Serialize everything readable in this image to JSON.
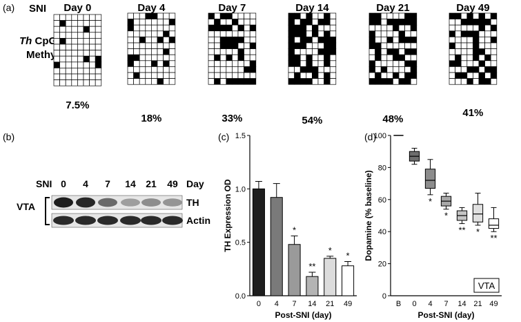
{
  "panel_a": {
    "label": "(a)",
    "group_label": "SNI",
    "row_label_italic": "Th",
    "row_label_rest": " CpG",
    "row_label_line2": "Methy",
    "grids": [
      {
        "day": "Day 0",
        "percent": "7.5%",
        "methylated_fraction": 0.075
      },
      {
        "day": "Day 4",
        "percent": "18%",
        "methylated_fraction": 0.18
      },
      {
        "day": "Day 7",
        "percent": "33%",
        "methylated_fraction": 0.33
      },
      {
        "day": "Day 14",
        "percent": "54%",
        "methylated_fraction": 0.54
      },
      {
        "day": "Day 21",
        "percent": "48%",
        "methylated_fraction": 0.48
      },
      {
        "day": "Day 49",
        "percent": "41%",
        "methylated_fraction": 0.41
      }
    ]
  },
  "panel_b": {
    "label": "(b)",
    "group_label": "SNI",
    "lanes": [
      "0",
      "4",
      "7",
      "14",
      "21",
      "49"
    ],
    "unit_label": "Day",
    "region_label": "VTA",
    "th_label": "TH",
    "actin_label": "Actin",
    "th_band_intensity": [
      1.0,
      0.95,
      0.55,
      0.25,
      0.35,
      0.3
    ]
  },
  "chart_data": [
    {
      "panel_label": "(c)",
      "type": "bar",
      "categories": [
        "0",
        "4",
        "7",
        "14",
        "21",
        "49"
      ],
      "values": [
        1.0,
        0.92,
        0.48,
        0.18,
        0.35,
        0.28
      ],
      "errors": [
        0.07,
        0.13,
        0.08,
        0.04,
        0.02,
        0.04
      ],
      "significance": [
        "",
        "",
        "*",
        "**",
        "*",
        "*"
      ],
      "bar_colors": [
        "#1e1e1e",
        "#7a7a7a",
        "#9a9a9a",
        "#b4b4b4",
        "#dcdcdc",
        "#ffffff"
      ],
      "xlabel": "Post-SNI (day)",
      "ylabel": "TH Expression OD",
      "ylim": [
        0,
        1.5
      ],
      "yticks": [
        "0.0",
        "0.5",
        "1.0",
        "1.5"
      ]
    },
    {
      "panel_label": "(d)",
      "type": "box",
      "categories": [
        "B",
        "0",
        "4",
        "7",
        "14",
        "21",
        "49"
      ],
      "boxes": [
        {
          "min": 100,
          "q1": 100,
          "median": 100,
          "q3": 100,
          "max": 100,
          "fill": "#000000"
        },
        {
          "min": 82,
          "q1": 84,
          "median": 87,
          "q3": 90,
          "max": 92,
          "fill": "#6e6e6e"
        },
        {
          "min": 63,
          "q1": 67,
          "median": 72,
          "q3": 79,
          "max": 85,
          "fill": "#8c8c8c"
        },
        {
          "min": 54,
          "q1": 56,
          "median": 59,
          "q3": 62,
          "max": 64,
          "fill": "#a8a8a8"
        },
        {
          "min": 45,
          "q1": 47,
          "median": 50,
          "q3": 53,
          "max": 55,
          "fill": "#c4c4c4"
        },
        {
          "min": 44,
          "q1": 46,
          "median": 51,
          "q3": 57,
          "max": 64,
          "fill": "#e0e0e0"
        },
        {
          "min": 40,
          "q1": 42,
          "median": 44,
          "q3": 48,
          "max": 55,
          "fill": "#ffffff"
        }
      ],
      "significance": [
        "",
        "",
        "*",
        "*",
        "**",
        "*",
        "**"
      ],
      "xlabel": "Post-SNI (day)",
      "ylabel": "Dopamine (% baseline)",
      "ylim": [
        0,
        100
      ],
      "yticks": [
        "0",
        "20",
        "40",
        "60",
        "80",
        "100"
      ],
      "annotation": "VTA"
    }
  ]
}
